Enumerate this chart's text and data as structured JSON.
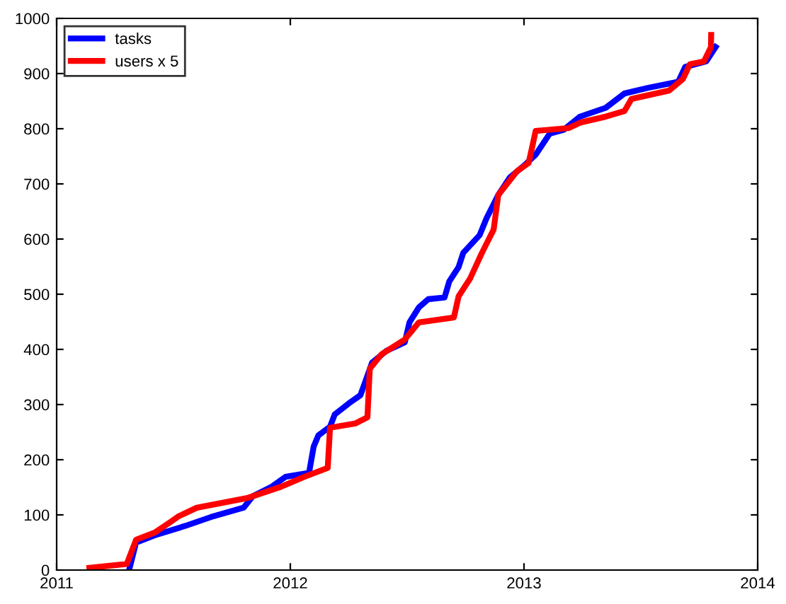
{
  "chart_data": {
    "type": "line",
    "xlim": [
      2011,
      2014
    ],
    "xticks": [
      2011,
      2012,
      2013,
      2014
    ],
    "ylim": [
      0,
      1000
    ],
    "yticks": [
      0,
      100,
      200,
      300,
      400,
      500,
      600,
      700,
      800,
      900,
      1000
    ],
    "legend": "top left",
    "grid": false,
    "line_style": "solid",
    "marker": "none",
    "series": [
      {
        "name": "tasks",
        "color": "#0000ff",
        "x": [
          2011.31,
          2011.34,
          2011.42,
          2011.55,
          2011.66,
          2011.8,
          2011.84,
          2011.92,
          2011.98,
          2012.08,
          2012.09,
          2012.1,
          2012.12,
          2012.17,
          2012.19,
          2012.25,
          2012.3,
          2012.35,
          2012.41,
          2012.49,
          2012.51,
          2012.55,
          2012.59,
          2012.66,
          2012.68,
          2012.72,
          2012.74,
          2012.81,
          2012.84,
          2012.89,
          2012.94,
          2013.0,
          2013.05,
          2013.11,
          2013.17,
          2013.24,
          2013.35,
          2013.43,
          2013.53,
          2013.66,
          2013.69,
          2013.78,
          2013.82
        ],
        "values": [
          0,
          50,
          63,
          80,
          96,
          113,
          134,
          151,
          169,
          176,
          200,
          224,
          244,
          260,
          282,
          302,
          317,
          376,
          397,
          413,
          449,
          476,
          491,
          494,
          523,
          549,
          575,
          607,
          638,
          680,
          712,
          733,
          753,
          791,
          798,
          822,
          838,
          864,
          874,
          885,
          912,
          922,
          948
        ]
      },
      {
        "name": "users x 5",
        "color": "#ff0000",
        "x": [
          2011.14,
          2011.3,
          2011.34,
          2011.42,
          2011.49,
          2011.52,
          2011.6,
          2011.82,
          2011.96,
          2012.06,
          2012.16,
          2012.17,
          2012.28,
          2012.33,
          2012.34,
          2012.39,
          2012.49,
          2012.55,
          2012.7,
          2012.72,
          2012.77,
          2012.82,
          2012.87,
          2012.89,
          2012.97,
          2013.02,
          2013.05,
          2013.19,
          2013.24,
          2013.35,
          2013.43,
          2013.46,
          2013.62,
          2013.68,
          2013.71,
          2013.77,
          2013.8,
          2013.801
        ],
        "values": [
          4,
          11,
          55,
          68,
          88,
          97,
          113,
          131,
          151,
          169,
          185,
          258,
          266,
          277,
          365,
          391,
          418,
          449,
          458,
          496,
          529,
          575,
          617,
          680,
          723,
          738,
          796,
          801,
          811,
          822,
          832,
          854,
          869,
          890,
          917,
          922,
          948,
          970
        ]
      }
    ]
  }
}
